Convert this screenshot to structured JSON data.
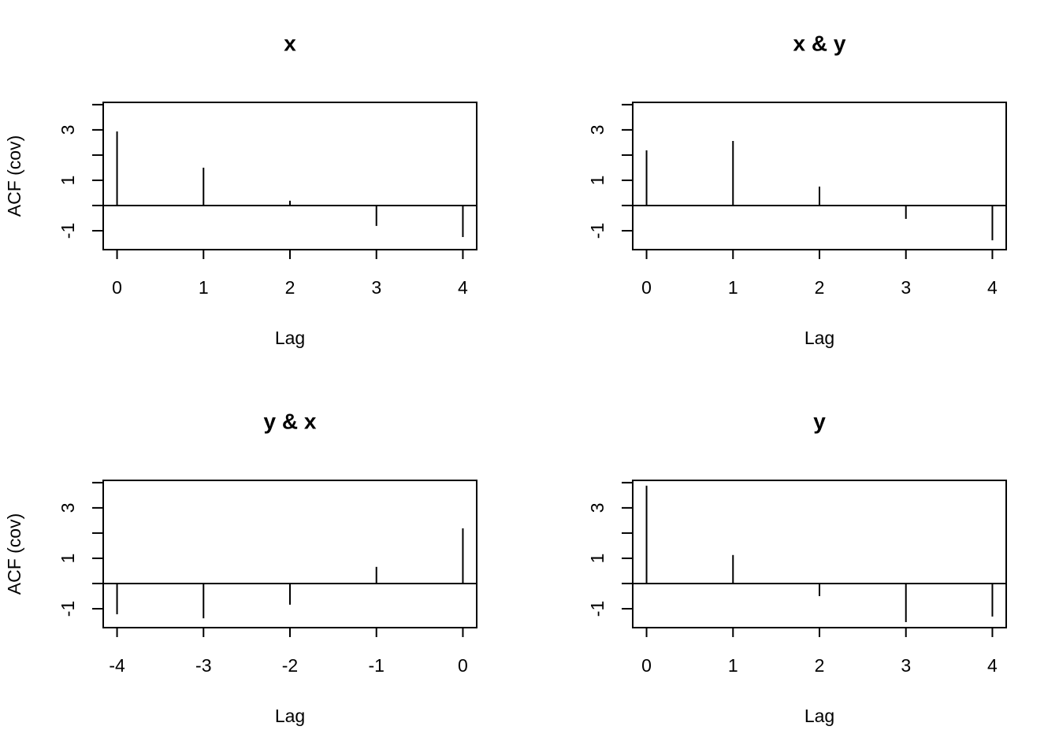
{
  "chart_data": [
    {
      "type": "bar",
      "title": "x",
      "xlabel": "Lag",
      "ylabel": "ACF (cov)",
      "color": "#000000",
      "x": [
        0,
        1,
        2,
        3,
        4
      ],
      "values": [
        2.94,
        1.5,
        0.19,
        -0.81,
        -1.25
      ],
      "xlim": [
        -0.16,
        4.16
      ],
      "xticks": [
        0,
        1,
        2,
        3,
        4
      ],
      "ylim": [
        -1.75,
        4.09
      ],
      "yticks": [
        -1,
        {
          "value": 0,
          "label": null
        },
        1,
        {
          "value": 2,
          "label": null
        },
        3,
        {
          "value": 4,
          "label": null
        }
      ]
    },
    {
      "type": "bar",
      "title": "x & y",
      "xlabel": "Lag",
      "color": "#000000",
      "x": [
        0,
        1,
        2,
        3,
        4
      ],
      "values": [
        2.19,
        2.56,
        0.75,
        -0.53,
        -1.38
      ],
      "xlim": [
        -0.16,
        4.16
      ],
      "xticks": [
        0,
        1,
        2,
        3,
        4
      ],
      "ylim": [
        -1.75,
        4.09
      ],
      "yticks": [
        -1,
        {
          "value": 0,
          "label": null
        },
        1,
        {
          "value": 2,
          "label": null
        },
        3,
        {
          "value": 4,
          "label": null
        }
      ]
    },
    {
      "type": "bar",
      "title": "y & x",
      "xlabel": "Lag",
      "ylabel": "ACF (cov)",
      "color": "#000000",
      "x": [
        -4,
        -3,
        -2,
        -1,
        0
      ],
      "values": [
        -1.22,
        -1.38,
        -0.84,
        0.66,
        2.19
      ],
      "xlim": [
        -4.16,
        0.16
      ],
      "xticks": [
        -4,
        -3,
        -2,
        -1,
        0
      ],
      "ylim": [
        -1.75,
        4.09
      ],
      "yticks": [
        -1,
        {
          "value": 0,
          "label": null
        },
        1,
        {
          "value": 2,
          "label": null
        },
        3,
        {
          "value": 4,
          "label": null
        }
      ]
    },
    {
      "type": "bar",
      "title": "y",
      "xlabel": "Lag",
      "color": "#000000",
      "x": [
        0,
        1,
        2,
        3,
        4
      ],
      "values": [
        3.88,
        1.13,
        -0.5,
        -1.53,
        -1.31
      ],
      "xlim": [
        -0.16,
        4.16
      ],
      "xticks": [
        0,
        1,
        2,
        3,
        4
      ],
      "ylim": [
        -1.75,
        4.09
      ],
      "yticks": [
        -1,
        {
          "value": 0,
          "label": null
        },
        1,
        {
          "value": 2,
          "label": null
        },
        3,
        {
          "value": 4,
          "label": null
        }
      ]
    }
  ]
}
